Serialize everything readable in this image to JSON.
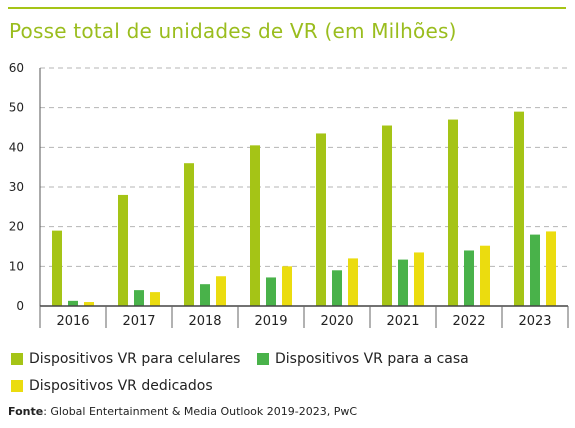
{
  "chart_data": {
    "type": "bar",
    "title": "Posse total de unidades de VR (em Milhões)",
    "categories": [
      "2016",
      "2017",
      "2018",
      "2019",
      "2020",
      "2021",
      "2022",
      "2023"
    ],
    "series": [
      {
        "name": "Dispositivos VR para celulares",
        "color": "#a5c416",
        "values": [
          19,
          28,
          36,
          40.5,
          43.5,
          45.5,
          47,
          49
        ]
      },
      {
        "name": "Dispositivos VR para a casa",
        "color": "#49b24a",
        "values": [
          1.3,
          4,
          5.5,
          7.2,
          9,
          11.7,
          14,
          18
        ]
      },
      {
        "name": "Dispositivos VR dedicados",
        "color": "#ebdc0f",
        "values": [
          1,
          3.5,
          7.5,
          10,
          12,
          13.5,
          15.2,
          18.8
        ]
      }
    ],
    "yticks": [
      "0",
      "10",
      "20",
      "30",
      "40",
      "50",
      "60"
    ],
    "ylim": [
      0,
      60
    ],
    "grid": true,
    "legend_position": "bottom"
  },
  "source": {
    "label": "Fonte",
    "text": ": Global Entertainment & Media Outlook 2019-2023, PwC"
  }
}
